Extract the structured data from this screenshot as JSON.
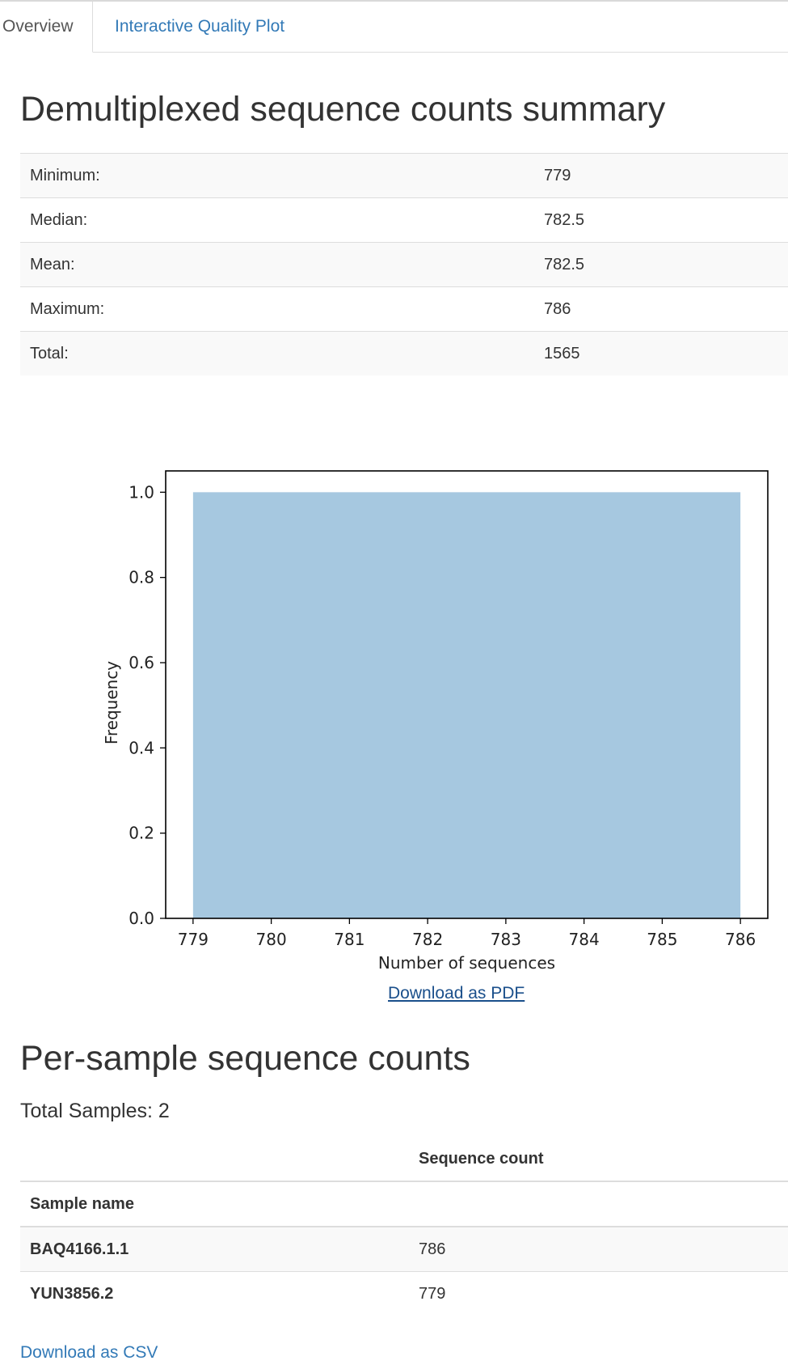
{
  "tabs": [
    {
      "label": "Overview",
      "active": true
    },
    {
      "label": "Interactive Quality Plot",
      "active": false
    }
  ],
  "summary": {
    "title": "Demultiplexed sequence counts summary",
    "rows": [
      {
        "label": "Minimum:",
        "value": "779"
      },
      {
        "label": "Median:",
        "value": "782.5"
      },
      {
        "label": "Mean:",
        "value": "782.5"
      },
      {
        "label": "Maximum:",
        "value": "786"
      },
      {
        "label": "Total:",
        "value": "1565"
      }
    ]
  },
  "chart_data": {
    "type": "bar",
    "title": "",
    "xlabel": "Number of sequences",
    "ylabel": "Frequency",
    "bins": [
      {
        "x0": 779,
        "x1": 786,
        "value": 1.0
      }
    ],
    "xticks": [
      779,
      780,
      781,
      782,
      783,
      784,
      785,
      786
    ],
    "yticks": [
      "0.0",
      "0.2",
      "0.4",
      "0.6",
      "0.8",
      "1.0"
    ],
    "xlim": [
      778.65,
      786.35
    ],
    "ylim": [
      0,
      1.05
    ],
    "bar_color": "#a6c8e0",
    "grid": false
  },
  "download_pdf": "Download as PDF",
  "per_sample": {
    "title": "Per-sample sequence counts",
    "total_samples": "Total Samples: 2",
    "column_header": "Sequence count",
    "index_header": "Sample name",
    "rows": [
      {
        "name": "BAQ4166.1.1",
        "count": "786"
      },
      {
        "name": "YUN3856.2",
        "count": "779"
      }
    ]
  },
  "download_csv": "Download as CSV"
}
